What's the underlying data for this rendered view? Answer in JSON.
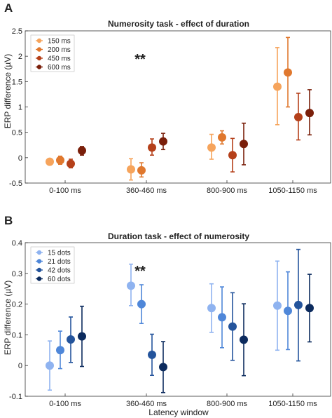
{
  "panels": [
    {
      "letter": "A",
      "title": "Numerosity task - effect of duration",
      "ylabel": "ERP difference (µV)",
      "xlabel": "",
      "significance": "**",
      "yticks": [
        "-0.5",
        "0",
        "0.5",
        "1",
        "1.5",
        "2",
        "2.5"
      ],
      "legend": [
        "150 ms",
        "200 ms",
        "450 ms",
        "600 ms"
      ]
    },
    {
      "letter": "B",
      "title": "Duration task - effect of numerosity",
      "ylabel": "ERP difference (µV)",
      "xlabel": "Latency window",
      "significance": "**",
      "yticks": [
        "-0.1",
        "0",
        "0.1",
        "0.2",
        "0.3",
        "0.4"
      ],
      "legend": [
        "15 dots",
        "21 dots",
        "42 dots",
        "60 dots"
      ]
    }
  ],
  "chart_data": [
    {
      "type": "scatter",
      "title": "Numerosity task - effect of duration",
      "xlabel": "",
      "ylabel": "ERP difference (µV)",
      "categories": [
        "0-100 ms",
        "360-460 ms",
        "800-900 ms",
        "1050-1150 ms"
      ],
      "ylim": [
        -0.5,
        2.5
      ],
      "grid": false,
      "legend_position": "top-left",
      "colors": [
        "#f6a45c",
        "#e0782e",
        "#b5401a",
        "#7a1f0a"
      ],
      "series": [
        {
          "name": "150 ms",
          "values": [
            -0.08,
            -0.23,
            0.2,
            1.4
          ],
          "err_low": [
            -0.14,
            -0.44,
            -0.03,
            0.65
          ],
          "err_high": [
            -0.02,
            -0.02,
            0.46,
            2.17
          ]
        },
        {
          "name": "200 ms",
          "values": [
            -0.05,
            -0.25,
            0.4,
            1.68
          ],
          "err_low": [
            -0.13,
            -0.38,
            0.27,
            1.0
          ],
          "err_high": [
            0.03,
            -0.1,
            0.53,
            2.37
          ]
        },
        {
          "name": "450 ms",
          "values": [
            -0.12,
            0.2,
            0.05,
            0.8
          ],
          "err_low": [
            -0.2,
            0.05,
            -0.28,
            0.35
          ],
          "err_high": [
            -0.03,
            0.37,
            0.38,
            1.27
          ]
        },
        {
          "name": "600 ms",
          "values": [
            0.14,
            0.32,
            0.27,
            0.88
          ],
          "err_low": [
            0.05,
            0.16,
            -0.14,
            0.45
          ],
          "err_high": [
            0.22,
            0.48,
            0.68,
            1.34
          ]
        }
      ]
    },
    {
      "type": "scatter",
      "title": "Duration task - effect of numerosity",
      "xlabel": "Latency window",
      "ylabel": "ERP difference (µV)",
      "categories": [
        "0-100 ms",
        "360-460 ms",
        "800-900 ms",
        "1050-1150 ms"
      ],
      "ylim": [
        -0.1,
        0.4
      ],
      "grid": false,
      "legend_position": "top-left",
      "colors": [
        "#8fb3f0",
        "#4f87d9",
        "#24549c",
        "#0c2b5e"
      ],
      "series": [
        {
          "name": "15 dots",
          "values": [
            0.0,
            0.26,
            0.187,
            0.195
          ],
          "err_low": [
            -0.08,
            0.195,
            0.108,
            0.05
          ],
          "err_high": [
            0.08,
            0.33,
            0.266,
            0.34
          ]
        },
        {
          "name": "21 dots",
          "values": [
            0.05,
            0.2,
            0.157,
            0.178
          ],
          "err_low": [
            -0.01,
            0.137,
            0.058,
            0.052
          ],
          "err_high": [
            0.112,
            0.263,
            0.256,
            0.305
          ]
        },
        {
          "name": "42 dots",
          "values": [
            0.085,
            0.035,
            0.127,
            0.197
          ],
          "err_low": [
            0.01,
            -0.032,
            0.017,
            0.015
          ],
          "err_high": [
            0.158,
            0.102,
            0.237,
            0.378
          ]
        },
        {
          "name": "60 dots",
          "values": [
            0.095,
            -0.005,
            0.084,
            0.187
          ],
          "err_low": [
            -0.003,
            -0.088,
            -0.033,
            0.077
          ],
          "err_high": [
            0.193,
            0.078,
            0.201,
            0.297
          ]
        }
      ]
    }
  ]
}
